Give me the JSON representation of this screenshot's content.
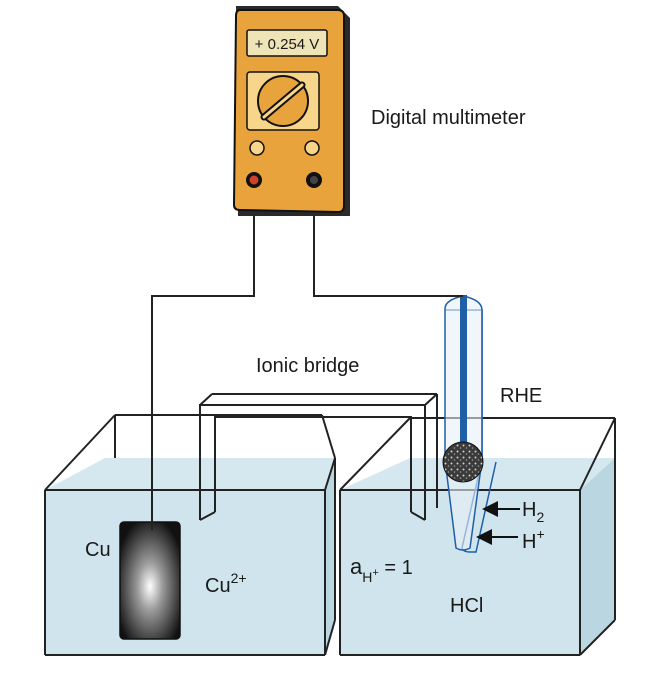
{
  "multimeter": {
    "display": "+ 0.254 V",
    "label": "Digital multimeter"
  },
  "bridge_label": "Ionic bridge",
  "reference_electrode_label": "RHE",
  "left_cell": {
    "electrode_label": "Cu",
    "ion_label": "Cu",
    "ion_charge": "2+"
  },
  "right_cell": {
    "activity_symbol": "a",
    "activity_subscript": "H",
    "activity_sub_charge": "+",
    "activity_value": " = 1",
    "electrolyte_label": "HCl",
    "gas_label": "H",
    "gas_subscript": "2",
    "ion_label": "H",
    "ion_charge": "+"
  },
  "colors": {
    "meter_body": "#E8A33C",
    "meter_panel": "#F7D58A",
    "meter_screen": "#EFE3B8",
    "solution": "#CFE4EC",
    "rhe_wire": "#1F5FA8",
    "red_terminal": "#D0402A"
  }
}
